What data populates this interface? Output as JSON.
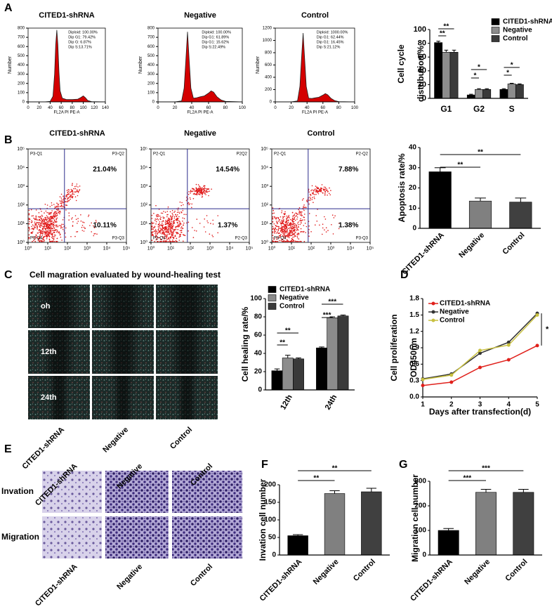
{
  "panel_labels": [
    "A",
    "B",
    "C",
    "D",
    "E",
    "F",
    "G"
  ],
  "wound_healing": {
    "title": "Cell magration evaluated by wound-healing test",
    "rows": [
      "oh",
      "12th",
      "24th"
    ],
    "columns": [
      "CITED1-shRNA",
      "Negative",
      "Control"
    ]
  },
  "transwell": {
    "rows": [
      "Invation",
      "Migration"
    ],
    "columns": [
      "CITED1-shRNA",
      "Negative",
      "Control"
    ]
  },
  "chart_data": [
    {
      "type": "area",
      "title": "CITED1-shRNA",
      "stats": [
        "Diploid: 100.00%",
        "Dip G1: 79.42%",
        "Dip G: 6.87%",
        "Dip S:13.71%"
      ],
      "xlabel": "FL2A PI PE-A",
      "ylabel": "Number",
      "color": "#d40000",
      "xlim": [
        0,
        140
      ],
      "xticks": [
        0,
        20,
        40,
        60,
        80,
        100,
        120,
        140
      ],
      "ylim": [
        0,
        800
      ],
      "yticks": [
        0,
        100,
        200,
        300,
        400,
        500,
        600,
        700,
        800
      ],
      "x": [
        0,
        30,
        40,
        45,
        48,
        50,
        52,
        54,
        56,
        58,
        62,
        70,
        80,
        90,
        95,
        100,
        104,
        108,
        115,
        140
      ],
      "values": [
        0,
        0,
        5,
        60,
        300,
        620,
        780,
        620,
        320,
        120,
        40,
        25,
        25,
        30,
        45,
        65,
        45,
        15,
        3,
        0
      ]
    },
    {
      "type": "area",
      "title": "Negative",
      "stats": [
        "Diploid: 100.00%",
        "Dip G1: 61.89%",
        "Dip G1: 15.62%",
        "Dip S:22.49%"
      ],
      "xlabel": "FL2A PI PE-A",
      "ylabel": "Number",
      "color": "#d40000",
      "xlim": [
        0,
        100
      ],
      "xticks": [
        0,
        20,
        40,
        60,
        80,
        100
      ],
      "ylim": [
        0,
        800
      ],
      "yticks": [
        0,
        100,
        200,
        300,
        400,
        500,
        600,
        700,
        800
      ],
      "x": [
        0,
        20,
        28,
        31,
        33,
        35,
        37,
        39,
        42,
        46,
        50,
        55,
        60,
        63,
        66,
        70,
        75,
        80,
        100
      ],
      "values": [
        0,
        0,
        10,
        150,
        450,
        760,
        450,
        150,
        40,
        45,
        55,
        65,
        95,
        120,
        105,
        55,
        20,
        5,
        0
      ]
    },
    {
      "type": "area",
      "title": "Control",
      "stats": [
        "Diploid: 1000.00%",
        "Dip G1: 62.44%",
        "Dip G1: 16.45%",
        "Dip S:21.12%"
      ],
      "xlabel": "FL2A PI PE-A",
      "ylabel": "Number",
      "color": "#d40000",
      "xlim": [
        0,
        100
      ],
      "xticks": [
        0,
        20,
        40,
        60,
        80,
        100
      ],
      "ylim": [
        0,
        1200
      ],
      "yticks": [
        0,
        200,
        400,
        600,
        800,
        1000,
        1200
      ],
      "x": [
        0,
        20,
        28,
        31,
        33,
        35,
        37,
        39,
        42,
        46,
        50,
        55,
        60,
        63,
        66,
        70,
        75,
        80,
        100
      ],
      "values": [
        0,
        0,
        15,
        250,
        700,
        1120,
        700,
        250,
        60,
        55,
        65,
        75,
        110,
        135,
        115,
        60,
        20,
        5,
        0
      ]
    },
    {
      "type": "bar",
      "ylabel": [
        "Cell cycle",
        "distribution/%"
      ],
      "categories": [
        "G1",
        "G2",
        "S"
      ],
      "series": [
        {
          "name": "CITED1-shRNA",
          "color": "#000000",
          "values": [
            81,
            5,
            13
          ],
          "errors": [
            2,
            1,
            1
          ]
        },
        {
          "name": "Negative",
          "color": "#8c8c8c",
          "values": [
            67,
            13,
            21
          ],
          "errors": [
            3,
            1,
            1
          ]
        },
        {
          "name": "Control",
          "color": "#3a3a3a",
          "values": [
            67,
            13,
            20
          ],
          "errors": [
            3,
            1,
            1
          ]
        }
      ],
      "ylim": [
        0,
        100
      ],
      "yticks": [
        0,
        20,
        40,
        60,
        80,
        100
      ],
      "annotations": [
        "**",
        "**",
        "*",
        "*",
        "*",
        "*"
      ]
    },
    {
      "type": "quadrant",
      "title": "CITED1-shRNA",
      "quadrant_labels": [
        "P3-Q1",
        "P3-Q2",
        "P3-Q3",
        "P3-Q4"
      ],
      "values": [
        21.04,
        10.11
      ],
      "value_labels": [
        "21.04%",
        "10.11%"
      ],
      "log": true,
      "xlim": [
        1,
        100000
      ],
      "xticks": [
        {
          "value": 1,
          "label": "10⁰"
        },
        {
          "value": 10,
          "label": "10¹"
        },
        {
          "value": 100,
          "label": "10²"
        },
        {
          "value": 1000,
          "label": "10³"
        },
        {
          "value": 10000,
          "label": "10⁴"
        },
        {
          "value": 100000,
          "label": "10⁵"
        }
      ],
      "ylim": [
        1,
        100000
      ],
      "yticks": [
        {
          "value": 1,
          "label": "10⁰"
        },
        {
          "value": 10,
          "label": "10¹"
        },
        {
          "value": 100,
          "label": "10²"
        },
        {
          "value": 1000,
          "label": "10³"
        },
        {
          "value": 10000,
          "label": "10⁴"
        },
        {
          "value": 100000,
          "label": "10⁵"
        }
      ]
    },
    {
      "type": "quadrant",
      "title": "Negative",
      "quadrant_labels": [
        "P2-Q1",
        "P2Q2",
        "P2-Q3",
        "P2-Q4"
      ],
      "values": [
        14.54,
        1.37
      ],
      "value_labels": [
        "14.54%",
        "1.37%"
      ],
      "log": true,
      "xlim": [
        1,
        100000
      ],
      "xticks": [
        {
          "value": 1,
          "label": "10⁰"
        },
        {
          "value": 10,
          "label": "10¹"
        },
        {
          "value": 100,
          "label": "10²"
        },
        {
          "value": 1000,
          "label": "10³"
        },
        {
          "value": 10000,
          "label": "10⁴"
        },
        {
          "value": 100000,
          "label": "10⁵"
        }
      ],
      "ylim": [
        1,
        100000
      ],
      "yticks": [
        {
          "value": 1,
          "label": "10⁰"
        },
        {
          "value": 10,
          "label": "10¹"
        },
        {
          "value": 100,
          "label": "10²"
        },
        {
          "value": 1000,
          "label": "10³"
        },
        {
          "value": 10000,
          "label": "10⁴"
        },
        {
          "value": 100000,
          "label": "10⁵"
        }
      ]
    },
    {
      "type": "quadrant",
      "title": "Control",
      "quadrant_labels": [
        "P2-Q1",
        "P2-Q2",
        "P3-Q3",
        "P3-Q4"
      ],
      "values": [
        7.88,
        1.38
      ],
      "value_labels": [
        "7.88%",
        "1.38%"
      ],
      "log": true,
      "xlim": [
        1,
        100000
      ],
      "xticks": [
        {
          "value": 1,
          "label": "10⁰"
        },
        {
          "value": 10,
          "label": "10¹"
        },
        {
          "value": 100,
          "label": "10²"
        },
        {
          "value": 1000,
          "label": "10³"
        },
        {
          "value": 10000,
          "label": "10⁴"
        },
        {
          "value": 100000,
          "label": "10⁵"
        }
      ],
      "ylim": [
        1,
        100000
      ],
      "yticks": [
        {
          "value": 1,
          "label": "10⁰"
        },
        {
          "value": 10,
          "label": "10¹"
        },
        {
          "value": 100,
          "label": "10²"
        },
        {
          "value": 1000,
          "label": "10³"
        },
        {
          "value": 10000,
          "label": "10⁴"
        },
        {
          "value": 100000,
          "label": "10⁵"
        }
      ]
    },
    {
      "type": "bar",
      "ylabel": "Apoptosis rate/%",
      "categories": [
        "CITED1-shRNA",
        "Negative",
        "Control"
      ],
      "values": [
        28,
        13.5,
        13
      ],
      "errors": [
        2,
        1.5,
        2
      ],
      "colors": [
        "#000000",
        "#808080",
        "#404040"
      ],
      "ylim": [
        0,
        40
      ],
      "yticks": [
        0,
        10,
        20,
        30,
        40
      ],
      "annotations": [
        "**",
        "**"
      ]
    },
    {
      "type": "bar",
      "ylabel": "Cell healing rate/%",
      "categories": [
        "12th",
        "24th"
      ],
      "series": [
        {
          "name": "CITED1-shRNA",
          "color": "#000000",
          "values": [
            21,
            46
          ],
          "errors": [
            2,
            1
          ]
        },
        {
          "name": "Negative",
          "color": "#8c8c8c",
          "values": [
            35,
            79
          ],
          "errors": [
            3,
            1
          ]
        },
        {
          "name": "Control",
          "color": "#3a3a3a",
          "values": [
            34,
            81
          ],
          "errors": [
            1,
            1
          ]
        }
      ],
      "ylim": [
        0,
        100
      ],
      "yticks": [
        0,
        20,
        40,
        60,
        80,
        100
      ],
      "annotations": [
        "**",
        "**",
        "***",
        "***"
      ]
    },
    {
      "type": "line",
      "xlabel": "Days after transfection(d)",
      "ylabel": [
        "Cell proliferation",
        "OD450nm"
      ],
      "x": [
        1,
        2,
        3,
        4,
        5
      ],
      "xlim": [
        1,
        5
      ],
      "xticks": [
        1,
        2,
        3,
        4,
        5
      ],
      "ylim": [
        0,
        1.8
      ],
      "yticks": [
        {
          "value": 0,
          "label": "0.0"
        },
        0.3,
        0.6,
        0.9,
        1.2,
        1.5,
        1.8
      ],
      "series": [
        {
          "name": "CITED1-shRNA",
          "color": "#e0201b",
          "values": [
            0.21,
            0.27,
            0.54,
            0.68,
            0.94
          ]
        },
        {
          "name": "Negative",
          "color": "#333333",
          "values": [
            0.33,
            0.42,
            0.8,
            1.0,
            1.53
          ]
        },
        {
          "name": "Control",
          "color": "#c8c040",
          "values": [
            0.32,
            0.4,
            0.85,
            0.95,
            1.5
          ]
        }
      ],
      "annotations": [
        "*"
      ]
    },
    {
      "type": "bar",
      "ylabel": "Invation cell number",
      "categories": [
        "CITED1-shRNA",
        "Negative",
        "Control"
      ],
      "values": [
        55,
        175,
        180
      ],
      "errors": [
        3,
        8,
        10
      ],
      "colors": [
        "#000000",
        "#808080",
        "#404040"
      ],
      "ylim": [
        0,
        200
      ],
      "yticks": [
        0,
        50,
        100,
        150,
        200
      ],
      "annotations": [
        "**",
        "**"
      ]
    },
    {
      "type": "bar",
      "ylabel": "Migration cell number",
      "categories": [
        "CITED1-shRNA",
        "Negative",
        "Control"
      ],
      "values": [
        100,
        255,
        255
      ],
      "errors": [
        8,
        12,
        12
      ],
      "colors": [
        "#000000",
        "#808080",
        "#404040"
      ],
      "ylim": [
        0,
        300
      ],
      "yticks": [
        0,
        100,
        200,
        300
      ],
      "annotations": [
        "***",
        "***"
      ]
    }
  ]
}
